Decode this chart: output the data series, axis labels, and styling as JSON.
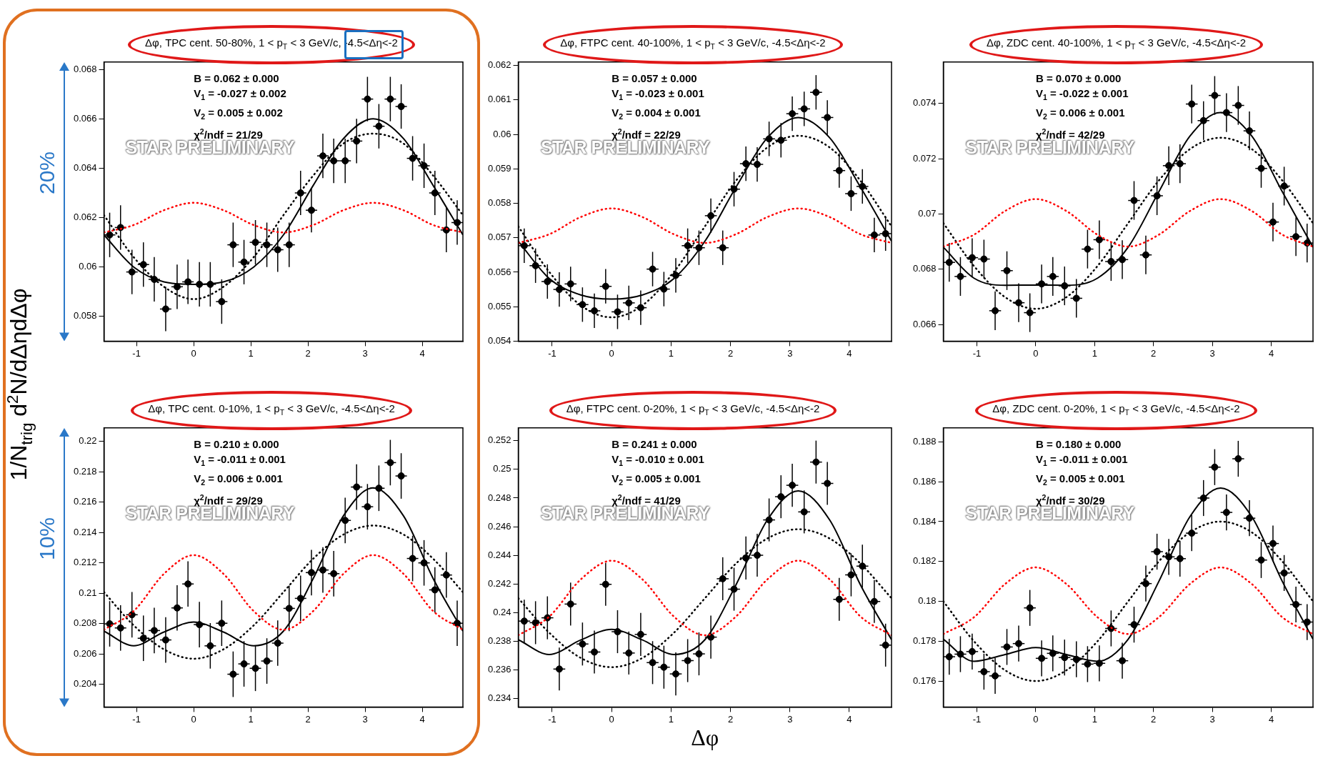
{
  "chart_data": [
    {
      "type": "scatter",
      "title": "Δφ, TPC cent. 50-80%, 1 < p$_{T}$ < 3 GeV/c, -4.5<Δη<-2",
      "ylabel": "1/N$_{trig}$ d$^{2}$N/dΔηdΔφ",
      "annotations": [
        "B = 0.062 ± 0.000",
        "V$_{1}$ = -0.027 ± 0.002",
        "V$_{2}$ = 0.005 ± 0.002",
        "χ$^{2}$/ndf = 21/29",
        "STAR PRELIMINARY",
        "20%"
      ],
      "xlim": [
        -1.57,
        4.71
      ],
      "xticks": [
        -1,
        0,
        1,
        2,
        3,
        4
      ],
      "ylim": [
        0.057,
        0.0683
      ],
      "yticks": [
        0.058,
        0.06,
        0.062,
        0.064,
        0.066,
        0.068
      ],
      "x": [
        -1.47,
        -1.28,
        -1.08,
        -0.88,
        -0.69,
        -0.49,
        -0.29,
        -0.1,
        0.1,
        0.29,
        0.49,
        0.69,
        0.88,
        1.08,
        1.28,
        1.47,
        1.67,
        1.87,
        2.06,
        2.26,
        2.45,
        2.65,
        2.85,
        3.04,
        3.24,
        3.44,
        3.63,
        3.83,
        4.03,
        4.22,
        4.42,
        4.61
      ],
      "series": [
        {
          "type": "line",
          "color": "#ff0000",
          "line_style": "dotted",
          "x": [
            -1.57,
            -1.05,
            -0.52,
            0,
            0.52,
            1.05,
            1.57,
            2.09,
            2.62,
            3.14,
            3.67,
            4.19,
            4.71
          ],
          "values": [
            0.0614,
            0.0617,
            0.0623,
            0.0626,
            0.0623,
            0.0617,
            0.0614,
            0.0617,
            0.0623,
            0.0626,
            0.0623,
            0.0617,
            0.0614
          ]
        },
        {
          "type": "line",
          "color": "#000000",
          "line_style": "dotted",
          "x": [
            -1.57,
            -1.05,
            -0.52,
            0,
            0.52,
            1.05,
            1.57,
            2.09,
            2.62,
            3.14,
            3.67,
            4.19,
            4.71
          ],
          "values": [
            0.0621,
            0.0604,
            0.0592,
            0.0587,
            0.0592,
            0.0604,
            0.0621,
            0.0637,
            0.065,
            0.0654,
            0.065,
            0.0637,
            0.0621
          ]
        },
        {
          "type": "line",
          "color": "#000000",
          "line_style": "solid",
          "x": [
            -1.57,
            -1.05,
            -0.52,
            0,
            0.52,
            1.05,
            1.57,
            2.09,
            2.62,
            3.14,
            3.67,
            4.19,
            4.71
          ],
          "values": [
            0.0613,
            0.06,
            0.0594,
            0.0593,
            0.0594,
            0.06,
            0.0613,
            0.0633,
            0.0652,
            0.066,
            0.0652,
            0.0633,
            0.0613
          ]
        },
        {
          "color": "#000000",
          "marker": "circle",
          "values": [
            0.0613,
            0.0616,
            0.0598,
            0.0601,
            0.0595,
            0.0583,
            0.0592,
            0.0594,
            0.0593,
            0.0593,
            0.0586,
            0.0609,
            0.0602,
            0.061,
            0.0609,
            0.0607,
            0.0609,
            0.063,
            0.0623,
            0.0645,
            0.0643,
            0.0643,
            0.0651,
            0.0668,
            0.0657,
            0.0668,
            0.0665,
            0.0644,
            0.0641,
            0.063,
            0.0615,
            0.0618
          ],
          "errors": [
            0.0009,
            0.0009,
            0.0009,
            0.0009,
            0.0009,
            0.0009,
            0.0009,
            0.0009,
            0.0009,
            0.0009,
            0.0009,
            0.0009,
            0.0009,
            0.0009,
            0.0009,
            0.0009,
            0.0009,
            0.0009,
            0.0009,
            0.0009,
            0.0009,
            0.0009,
            0.0009,
            0.0009,
            0.0009,
            0.0009,
            0.0009,
            0.0009,
            0.0009,
            0.0009,
            0.0009,
            0.0009
          ],
          "xerrors": [
            0.1,
            0.1,
            0.1,
            0.1,
            0.1,
            0.1,
            0.1,
            0.1,
            0.1,
            0.1,
            0.1,
            0.1,
            0.1,
            0.1,
            0.1,
            0.1,
            0.1,
            0.1,
            0.1,
            0.1,
            0.1,
            0.1,
            0.1,
            0.1,
            0.1,
            0.1,
            0.1,
            0.1,
            0.1,
            0.1,
            0.1,
            0.1
          ]
        }
      ]
    },
    {
      "type": "scatter",
      "title": "Δφ, FTPC cent. 40-100%, 1 < p$_{T}$ < 3 GeV/c, -4.5<Δη<-2",
      "annotations": [
        "B = 0.057 ± 0.000",
        "V$_{1}$ = -0.023 ± 0.001",
        "V$_{2}$ = 0.004 ± 0.001",
        "χ$^{2}$/ndf = 22/29",
        "STAR PRELIMINARY"
      ],
      "xlim": [
        -1.57,
        4.71
      ],
      "xticks": [
        -1,
        0,
        1,
        2,
        3,
        4
      ],
      "ylim": [
        0.054,
        0.0621
      ],
      "yticks": [
        0.054,
        0.055,
        0.056,
        0.057,
        0.058,
        0.059,
        0.06,
        0.061,
        0.062
      ],
      "x": [
        -1.47,
        -1.28,
        -1.08,
        -0.88,
        -0.69,
        -0.49,
        -0.29,
        -0.1,
        0.1,
        0.29,
        0.49,
        0.69,
        0.88,
        1.08,
        1.28,
        1.47,
        1.67,
        1.87,
        2.06,
        2.26,
        2.45,
        2.65,
        2.85,
        3.04,
        3.24,
        3.44,
        3.63,
        3.83,
        4.03,
        4.22,
        4.42,
        4.61
      ],
      "series": [
        {
          "type": "line",
          "color": "#ff0000",
          "line_style": "dotted",
          "x": [
            -1.57,
            -1.05,
            -0.52,
            0,
            0.52,
            1.05,
            1.57,
            2.09,
            2.62,
            3.14,
            3.67,
            4.19,
            4.71
          ],
          "values": [
            0.05685,
            0.0571,
            0.0576,
            0.05785,
            0.0576,
            0.0571,
            0.05685,
            0.0571,
            0.0576,
            0.05785,
            0.0576,
            0.0571,
            0.05685
          ]
        },
        {
          "type": "line",
          "color": "#000000",
          "line_style": "dotted",
          "x": [
            -1.57,
            -1.05,
            -0.52,
            0,
            0.52,
            1.05,
            1.57,
            2.09,
            2.62,
            3.14,
            3.67,
            4.19,
            4.71
          ],
          "values": [
            0.05733,
            0.05601,
            0.05504,
            0.05469,
            0.05504,
            0.05601,
            0.05733,
            0.05865,
            0.05962,
            0.05996,
            0.05962,
            0.05865,
            0.05733
          ]
        },
        {
          "type": "line",
          "color": "#000000",
          "line_style": "solid",
          "x": [
            -1.57,
            -1.05,
            -0.52,
            0,
            0.52,
            1.05,
            1.57,
            2.09,
            2.62,
            3.14,
            3.67,
            4.19,
            4.71
          ],
          "values": [
            0.0569,
            0.05582,
            0.05534,
            0.05522,
            0.05534,
            0.05582,
            0.0569,
            0.05846,
            0.0599,
            0.06049,
            0.0599,
            0.05846,
            0.0569
          ]
        },
        {
          "color": "#000000",
          "marker": "circle",
          "values": [
            0.05677,
            0.05619,
            0.05573,
            0.0555,
            0.05566,
            0.05506,
            0.05488,
            0.05559,
            0.05485,
            0.05511,
            0.05497,
            0.05609,
            0.05551,
            0.05591,
            0.05677,
            0.05671,
            0.05764,
            0.05671,
            0.05841,
            0.05915,
            0.05913,
            0.05987,
            0.05983,
            0.0606,
            0.06074,
            0.06122,
            0.06049,
            0.05895,
            0.05828,
            0.05849,
            0.05708,
            0.05712
          ],
          "errors": [
            0.0005,
            0.0005,
            0.0005,
            0.0005,
            0.0005,
            0.0005,
            0.0005,
            0.0005,
            0.0005,
            0.0005,
            0.0005,
            0.0005,
            0.0005,
            0.0005,
            0.0005,
            0.0005,
            0.0005,
            0.0005,
            0.0005,
            0.0005,
            0.0005,
            0.0005,
            0.0005,
            0.0005,
            0.0005,
            0.0005,
            0.0005,
            0.0005,
            0.0005,
            0.0005,
            0.0005,
            0.0005
          ],
          "xerrors": [
            0.1,
            0.1,
            0.1,
            0.1,
            0.1,
            0.1,
            0.1,
            0.1,
            0.1,
            0.1,
            0.1,
            0.1,
            0.1,
            0.1,
            0.1,
            0.1,
            0.1,
            0.1,
            0.1,
            0.1,
            0.1,
            0.1,
            0.1,
            0.1,
            0.1,
            0.1,
            0.1,
            0.1,
            0.1,
            0.1,
            0.1,
            0.1
          ]
        }
      ]
    },
    {
      "type": "scatter",
      "title": "Δφ, ZDC cent. 40-100%, 1 < p$_{T}$ < 3 GeV/c, -4.5<Δη<-2",
      "annotations": [
        "B = 0.070 ± 0.000",
        "V$_{1}$ = -0.022 ± 0.001",
        "V$_{2}$ = 0.006 ± 0.001",
        "χ$^{2}$/ndf = 42/29",
        "STAR PRELIMINARY"
      ],
      "xlim": [
        -1.57,
        4.71
      ],
      "xticks": [
        -1,
        0,
        1,
        2,
        3,
        4
      ],
      "ylim": [
        0.0654,
        0.0755
      ],
      "yticks": [
        0.066,
        0.068,
        0.07,
        0.072,
        0.074
      ],
      "x": [
        -1.47,
        -1.28,
        -1.08,
        -0.88,
        -0.69,
        -0.49,
        -0.29,
        -0.1,
        0.1,
        0.29,
        0.49,
        0.69,
        0.88,
        1.08,
        1.28,
        1.47,
        1.67,
        1.87,
        2.06,
        2.26,
        2.45,
        2.65,
        2.85,
        3.04,
        3.24,
        3.44,
        3.63,
        3.83,
        4.03,
        4.22,
        4.42,
        4.61
      ],
      "series": [
        {
          "type": "line",
          "color": "#ff0000",
          "line_style": "dotted",
          "x": [
            -1.57,
            -1.05,
            -0.52,
            0,
            0.52,
            1.05,
            1.57,
            2.09,
            2.62,
            3.14,
            3.67,
            4.19,
            4.71
          ],
          "values": [
            0.06882,
            0.06925,
            0.07011,
            0.07054,
            0.07011,
            0.06925,
            0.06882,
            0.06925,
            0.07011,
            0.07054,
            0.07011,
            0.06925,
            0.06882
          ]
        },
        {
          "type": "line",
          "color": "#000000",
          "line_style": "dotted",
          "x": [
            -1.57,
            -1.05,
            -0.52,
            0,
            0.52,
            1.05,
            1.57,
            2.09,
            2.62,
            3.14,
            3.67,
            4.19,
            4.71
          ],
          "values": [
            0.06967,
            0.06812,
            0.06699,
            0.06657,
            0.06699,
            0.06812,
            0.06967,
            0.07121,
            0.07235,
            0.07276,
            0.07235,
            0.07121,
            0.06967
          ]
        },
        {
          "type": "line",
          "color": "#000000",
          "line_style": "solid",
          "x": [
            -1.57,
            -1.05,
            -0.52,
            0,
            0.52,
            1.05,
            1.57,
            2.09,
            2.62,
            3.14,
            3.67,
            4.19,
            4.71
          ],
          "values": [
            0.0688,
            0.06768,
            0.06742,
            0.06743,
            0.06742,
            0.06768,
            0.0688,
            0.0708,
            0.07282,
            0.07367,
            0.07282,
            0.0708,
            0.0688
          ]
        },
        {
          "color": "#000000",
          "marker": "circle",
          "values": [
            0.06825,
            0.06774,
            0.06842,
            0.06837,
            0.0665,
            0.06795,
            0.06679,
            0.06643,
            0.06747,
            0.06774,
            0.0674,
            0.06695,
            0.06873,
            0.06907,
            0.06828,
            0.06835,
            0.07049,
            0.06852,
            0.07066,
            0.07175,
            0.07182,
            0.07398,
            0.07338,
            0.07429,
            0.07367,
            0.07393,
            0.07301,
            0.07165,
            0.06971,
            0.07101,
            0.06918,
            0.06895
          ],
          "errors": [
            0.0007,
            0.0007,
            0.0007,
            0.0007,
            0.0007,
            0.0007,
            0.0007,
            0.0007,
            0.0007,
            0.0007,
            0.0007,
            0.0007,
            0.0007,
            0.0007,
            0.0007,
            0.0007,
            0.0007,
            0.0007,
            0.0007,
            0.0007,
            0.0007,
            0.0007,
            0.0007,
            0.0007,
            0.0007,
            0.0007,
            0.0007,
            0.0007,
            0.0007,
            0.0007,
            0.0007,
            0.0007
          ],
          "xerrors": [
            0.1,
            0.1,
            0.1,
            0.1,
            0.1,
            0.1,
            0.1,
            0.1,
            0.1,
            0.1,
            0.1,
            0.1,
            0.1,
            0.1,
            0.1,
            0.1,
            0.1,
            0.1,
            0.1,
            0.1,
            0.1,
            0.1,
            0.1,
            0.1,
            0.1,
            0.1,
            0.1,
            0.1,
            0.1,
            0.1,
            0.1,
            0.1
          ]
        }
      ]
    },
    {
      "type": "scatter",
      "title": "Δφ, TPC cent. 0-10%, 1 < p$_{T}$ < 3 GeV/c, -4.5<Δη<-2",
      "annotations": [
        "B = 0.210 ± 0.000",
        "V$_{1}$ = -0.011 ± 0.001",
        "V$_{2}$ = 0.006 ± 0.001",
        "χ$^{2}$/ndf = 29/29",
        "STAR PRELIMINARY",
        "10%"
      ],
      "xlim": [
        -1.57,
        4.71
      ],
      "xticks": [
        -1,
        0,
        1,
        2,
        3,
        4
      ],
      "ylim": [
        0.2025,
        0.2209
      ],
      "yticks": [
        0.204,
        0.206,
        0.208,
        0.21,
        0.212,
        0.214,
        0.216,
        0.218,
        0.22
      ],
      "x": [
        -1.47,
        -1.28,
        -1.08,
        -0.88,
        -0.69,
        -0.49,
        -0.29,
        -0.1,
        0.1,
        0.29,
        0.49,
        0.69,
        0.88,
        1.08,
        1.28,
        1.47,
        1.67,
        1.87,
        2.06,
        2.26,
        2.45,
        2.65,
        2.85,
        3.04,
        3.24,
        3.44,
        3.63,
        3.83,
        4.03,
        4.22,
        4.42,
        4.61
      ],
      "series": [
        {
          "type": "line",
          "color": "#ff0000",
          "line_style": "dotted",
          "x": [
            -1.57,
            -1.05,
            -0.52,
            0,
            0.52,
            1.05,
            1.57,
            2.09,
            2.62,
            3.14,
            3.67,
            4.19,
            4.71
          ],
          "values": [
            0.20759,
            0.20882,
            0.21128,
            0.21251,
            0.21128,
            0.20882,
            0.20759,
            0.20882,
            0.21128,
            0.21251,
            0.21128,
            0.20882,
            0.20759
          ]
        },
        {
          "type": "line",
          "color": "#000000",
          "line_style": "dotted",
          "x": [
            -1.57,
            -1.05,
            -0.52,
            0,
            0.52,
            1.05,
            1.57,
            2.09,
            2.62,
            3.14,
            3.67,
            4.19,
            4.71
          ],
          "values": [
            0.21007,
            0.20788,
            0.2063,
            0.20568,
            0.2063,
            0.20788,
            0.21007,
            0.21227,
            0.21387,
            0.21446,
            0.21387,
            0.21227,
            0.21007
          ]
        },
        {
          "type": "line",
          "color": "#000000",
          "line_style": "solid",
          "x": [
            -1.57,
            -1.05,
            -0.52,
            0,
            0.52,
            1.05,
            1.57,
            2.09,
            2.62,
            3.14,
            3.67,
            4.19,
            4.71
          ],
          "values": [
            0.2075,
            0.20654,
            0.20744,
            0.2081,
            0.20744,
            0.20654,
            0.2075,
            0.21096,
            0.2151,
            0.21695,
            0.2151,
            0.21096,
            0.2075
          ]
        },
        {
          "color": "#000000",
          "marker": "circle",
          "values": [
            0.20798,
            0.20771,
            0.20858,
            0.20703,
            0.20754,
            0.20692,
            0.20903,
            0.21061,
            0.20793,
            0.20653,
            0.20802,
            0.20466,
            0.20534,
            0.20505,
            0.20553,
            0.20671,
            0.209,
            0.20966,
            0.21136,
            0.21153,
            0.21129,
            0.2148,
            0.217,
            0.2157,
            0.21692,
            0.21861,
            0.21773,
            0.21229,
            0.212,
            0.21022,
            0.2112,
            0.20802
          ],
          "errors": [
            0.0015,
            0.0015,
            0.0015,
            0.0015,
            0.0015,
            0.0015,
            0.0015,
            0.0015,
            0.0015,
            0.0015,
            0.0015,
            0.0015,
            0.0015,
            0.0015,
            0.0015,
            0.0015,
            0.0015,
            0.0015,
            0.0015,
            0.0015,
            0.0015,
            0.0015,
            0.0015,
            0.0015,
            0.0015,
            0.0015,
            0.0015,
            0.0015,
            0.0015,
            0.0015,
            0.0015,
            0.0015
          ],
          "xerrors": [
            0.1,
            0.1,
            0.1,
            0.1,
            0.1,
            0.1,
            0.1,
            0.1,
            0.1,
            0.1,
            0.1,
            0.1,
            0.1,
            0.1,
            0.1,
            0.1,
            0.1,
            0.1,
            0.1,
            0.1,
            0.1,
            0.1,
            0.1,
            0.1,
            0.1,
            0.1,
            0.1,
            0.1,
            0.1,
            0.1,
            0.1,
            0.1
          ]
        }
      ]
    },
    {
      "type": "scatter",
      "title": "Δφ, FTPC cent. 0-20%, 1 < p$_{T}$ < 3 GeV/c, -4.5<Δη<-2",
      "xlabel": "Δφ",
      "annotations": [
        "B = 0.241 ± 0.000",
        "V$_{1}$ = -0.010 ± 0.001",
        "V$_{2}$ = 0.005 ± 0.001",
        "χ$^{2}$/ndf = 41/29",
        "STAR PRELIMINARY"
      ],
      "xlim": [
        -1.57,
        4.71
      ],
      "xticks": [
        -1,
        0,
        1,
        2,
        3,
        4
      ],
      "ylim": [
        0.2334,
        0.2529
      ],
      "yticks": [
        0.234,
        0.236,
        0.238,
        0.24,
        0.242,
        0.244,
        0.246,
        0.248,
        0.25,
        0.252
      ],
      "x": [
        -1.47,
        -1.28,
        -1.08,
        -0.88,
        -0.69,
        -0.49,
        -0.29,
        -0.1,
        0.1,
        0.29,
        0.49,
        0.69,
        0.88,
        1.08,
        1.28,
        1.47,
        1.67,
        1.87,
        2.06,
        2.26,
        2.45,
        2.65,
        2.85,
        3.04,
        3.24,
        3.44,
        3.63,
        3.83,
        4.03,
        4.22,
        4.42,
        4.61
      ],
      "series": [
        {
          "type": "line",
          "color": "#ff0000",
          "line_style": "dotted",
          "x": [
            -1.57,
            -1.05,
            -0.52,
            0,
            0.52,
            1.05,
            1.57,
            2.09,
            2.62,
            3.14,
            3.67,
            4.19,
            4.71
          ],
          "values": [
            0.23841,
            0.23971,
            0.24231,
            0.24362,
            0.24231,
            0.23971,
            0.23841,
            0.23971,
            0.24231,
            0.24362,
            0.24231,
            0.23971,
            0.23841
          ]
        },
        {
          "type": "line",
          "color": "#000000",
          "line_style": "dotted",
          "x": [
            -1.57,
            -1.05,
            -0.52,
            0,
            0.52,
            1.05,
            1.57,
            2.09,
            2.62,
            3.14,
            3.67,
            4.19,
            4.71
          ],
          "values": [
            0.241,
            0.23859,
            0.23683,
            0.23618,
            0.23683,
            0.23859,
            0.241,
            0.24341,
            0.24517,
            0.24582,
            0.24517,
            0.24341,
            0.241
          ]
        },
        {
          "type": "line",
          "color": "#000000",
          "line_style": "solid",
          "x": [
            -1.57,
            -1.05,
            -0.52,
            0,
            0.52,
            1.05,
            1.57,
            2.09,
            2.62,
            3.14,
            3.67,
            4.19,
            4.71
          ],
          "values": [
            0.2381,
            0.23707,
            0.23808,
            0.23882,
            0.23808,
            0.23707,
            0.2381,
            0.24191,
            0.24646,
            0.2485,
            0.24646,
            0.24191,
            0.2381
          ]
        },
        {
          "color": "#000000",
          "marker": "circle",
          "values": [
            0.2394,
            0.23929,
            0.23963,
            0.23605,
            0.24059,
            0.2378,
            0.23724,
            0.24197,
            0.23866,
            0.23717,
            0.23847,
            0.2365,
            0.23618,
            0.23571,
            0.23664,
            0.23711,
            0.23828,
            0.24236,
            0.24163,
            0.24381,
            0.244,
            0.24647,
            0.24809,
            0.24889,
            0.24703,
            0.25051,
            0.24902,
            0.24092,
            0.24263,
            0.24324,
            0.24077,
            0.23772
          ],
          "errors": [
            0.0015,
            0.0015,
            0.0015,
            0.0015,
            0.0015,
            0.0015,
            0.0015,
            0.0015,
            0.0015,
            0.0015,
            0.0015,
            0.0015,
            0.0015,
            0.0015,
            0.0015,
            0.0015,
            0.0015,
            0.0015,
            0.0015,
            0.0015,
            0.0015,
            0.0015,
            0.0015,
            0.0015,
            0.0015,
            0.0015,
            0.0015,
            0.0015,
            0.0015,
            0.0015,
            0.0015,
            0.0015
          ],
          "xerrors": [
            0.1,
            0.1,
            0.1,
            0.1,
            0.1,
            0.1,
            0.1,
            0.1,
            0.1,
            0.1,
            0.1,
            0.1,
            0.1,
            0.1,
            0.1,
            0.1,
            0.1,
            0.1,
            0.1,
            0.1,
            0.1,
            0.1,
            0.1,
            0.1,
            0.1,
            0.1,
            0.1,
            0.1,
            0.1,
            0.1,
            0.1,
            0.1
          ]
        }
      ]
    },
    {
      "type": "scatter",
      "title": "Δφ, ZDC cent. 0-20%, 1 < p$_{T}$ < 3 GeV/c, -4.5<Δη<-2",
      "annotations": [
        "B = 0.180 ± 0.000",
        "V$_{1}$ = -0.011 ± 0.001",
        "V$_{2}$ = 0.005 ± 0.001",
        "χ$^{2}$/ndf = 30/29",
        "STAR PRELIMINARY"
      ],
      "xlim": [
        -1.57,
        4.71
      ],
      "xticks": [
        -1,
        0,
        1,
        2,
        3,
        4
      ],
      "ylim": [
        0.1747,
        0.1887
      ],
      "yticks": [
        0.176,
        0.178,
        0.18,
        0.182,
        0.184,
        0.186,
        0.188
      ],
      "x": [
        -1.47,
        -1.28,
        -1.08,
        -0.88,
        -0.69,
        -0.49,
        -0.29,
        -0.1,
        0.1,
        0.29,
        0.49,
        0.69,
        0.88,
        1.08,
        1.28,
        1.47,
        1.67,
        1.87,
        2.06,
        2.26,
        2.45,
        2.65,
        2.85,
        3.04,
        3.24,
        3.44,
        3.63,
        3.83,
        4.03,
        4.22,
        4.42,
        4.61
      ],
      "series": [
        {
          "type": "line",
          "color": "#ff0000",
          "line_style": "dotted",
          "x": [
            -1.57,
            -1.05,
            -0.52,
            0,
            0.52,
            1.05,
            1.57,
            2.09,
            2.62,
            3.14,
            3.67,
            4.19,
            4.71
          ],
          "values": [
            0.17836,
            0.1792,
            0.18087,
            0.1817,
            0.18087,
            0.1792,
            0.17836,
            0.1792,
            0.18087,
            0.1817,
            0.18087,
            0.1792,
            0.17836
          ]
        },
        {
          "type": "line",
          "color": "#000000",
          "line_style": "dotted",
          "x": [
            -1.57,
            -1.05,
            -0.52,
            0,
            0.52,
            1.05,
            1.57,
            2.09,
            2.62,
            3.14,
            3.67,
            4.19,
            4.71
          ],
          "values": [
            0.18,
            0.178,
            0.17654,
            0.176,
            0.17654,
            0.178,
            0.18,
            0.182,
            0.18346,
            0.184,
            0.18346,
            0.182,
            0.18
          ]
        },
        {
          "type": "line",
          "color": "#000000",
          "line_style": "solid",
          "x": [
            -1.57,
            -1.05,
            -0.52,
            0,
            0.52,
            1.05,
            1.57,
            2.09,
            2.62,
            3.14,
            3.67,
            4.19,
            4.71
          ],
          "values": [
            0.1781,
            0.17699,
            0.17733,
            0.17768,
            0.17733,
            0.17699,
            0.1781,
            0.18099,
            0.18425,
            0.18568,
            0.18425,
            0.18099,
            0.1781
          ]
        },
        {
          "color": "#000000",
          "marker": "circle",
          "values": [
            0.17722,
            0.17735,
            0.17748,
            0.17647,
            0.17626,
            0.17771,
            0.17788,
            0.17967,
            0.17714,
            0.17739,
            0.17718,
            0.17709,
            0.17685,
            0.17689,
            0.17864,
            0.17702,
            0.17883,
            0.18089,
            0.18249,
            0.18223,
            0.18214,
            0.18342,
            0.18518,
            0.18673,
            0.18446,
            0.18715,
            0.18417,
            0.18207,
            0.1829,
            0.18142,
            0.17984,
            0.17896
          ],
          "errors": [
            0.0009,
            0.0009,
            0.0009,
            0.0009,
            0.0009,
            0.0009,
            0.0009,
            0.0009,
            0.0009,
            0.0009,
            0.0009,
            0.0009,
            0.0009,
            0.0009,
            0.0009,
            0.0009,
            0.0009,
            0.0009,
            0.0009,
            0.0009,
            0.0009,
            0.0009,
            0.0009,
            0.0009,
            0.0009,
            0.0009,
            0.0009,
            0.0009,
            0.0009,
            0.0009,
            0.0009,
            0.0009
          ],
          "xerrors": [
            0.1,
            0.1,
            0.1,
            0.1,
            0.1,
            0.1,
            0.1,
            0.1,
            0.1,
            0.1,
            0.1,
            0.1,
            0.1,
            0.1,
            0.1,
            0.1,
            0.1,
            0.1,
            0.1,
            0.1,
            0.1,
            0.1,
            0.1,
            0.1,
            0.1,
            0.1,
            0.1,
            0.1,
            0.1,
            0.1,
            0.1,
            0.1
          ]
        }
      ]
    }
  ]
}
